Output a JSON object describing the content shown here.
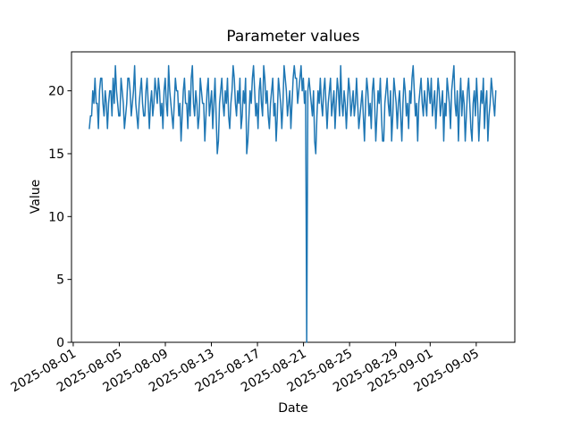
{
  "chart_data": {
    "type": "line",
    "title": "Parameter values",
    "xlabel": "Date",
    "ylabel": "Value",
    "line_color": "#1f77b4",
    "axis_color": "#000000",
    "grid": false,
    "legend": null,
    "x_epoch": "2025-08-01",
    "x_start_day": 1.4,
    "x_step_days": 0.098328,
    "xlim_days": [
      -0.15,
      38.35
    ],
    "ylim": [
      0,
      23.1
    ],
    "y_ticks": [
      0,
      5,
      10,
      15,
      20
    ],
    "x_ticks": [
      {
        "day": 0,
        "label": "2025-08-01"
      },
      {
        "day": 4,
        "label": "2025-08-05"
      },
      {
        "day": 8,
        "label": "2025-08-09"
      },
      {
        "day": 12,
        "label": "2025-08-13"
      },
      {
        "day": 16,
        "label": "2025-08-17"
      },
      {
        "day": 20,
        "label": "2025-08-21"
      },
      {
        "day": 24,
        "label": "2025-08-25"
      },
      {
        "day": 28,
        "label": "2025-08-29"
      },
      {
        "day": 31,
        "label": "2025-09-01"
      },
      {
        "day": 35,
        "label": "2025-09-05"
      }
    ],
    "values": [
      17,
      18,
      18,
      20,
      19,
      21,
      19,
      19,
      17,
      20,
      21,
      21,
      19,
      18,
      20,
      19,
      17,
      19,
      20,
      20,
      18,
      21,
      19,
      22,
      20,
      19,
      18,
      18,
      21,
      20,
      19,
      17,
      18,
      19,
      21,
      21,
      20,
      18,
      19,
      20,
      22,
      19,
      18,
      17,
      19,
      20,
      21,
      19,
      18,
      18,
      20,
      21,
      19,
      17,
      19,
      20,
      18,
      19,
      21,
      20,
      19,
      21,
      20,
      18,
      19,
      17,
      20,
      21,
      19,
      18,
      22,
      20,
      19,
      18,
      17,
      19,
      21,
      20,
      20,
      18,
      19,
      16,
      18,
      20,
      21,
      19,
      19,
      17,
      20,
      18,
      21,
      22,
      19,
      18,
      20,
      19,
      17,
      18,
      21,
      20,
      19,
      19,
      16,
      18,
      20,
      21,
      18,
      19,
      20,
      17,
      19,
      21,
      18,
      15,
      16,
      19,
      20,
      21,
      19,
      18,
      20,
      19,
      21,
      18,
      17,
      19,
      20,
      22,
      21,
      19,
      18,
      20,
      19,
      21,
      17,
      18,
      20,
      19,
      21,
      15,
      16,
      18,
      20,
      19,
      21,
      22,
      20,
      18,
      19,
      17,
      20,
      21,
      19,
      18,
      22,
      21,
      19,
      20,
      18,
      17,
      19,
      20,
      21,
      18,
      19,
      16,
      18,
      21,
      20,
      19,
      17,
      19,
      22,
      21,
      20,
      18,
      19,
      20,
      17,
      19,
      21,
      22,
      21,
      21,
      19,
      20,
      21,
      22,
      20,
      21,
      19,
      20,
      0,
      20,
      21,
      20,
      19,
      18,
      20,
      16,
      15,
      18,
      20,
      19,
      21,
      19,
      18,
      20,
      21,
      19,
      17,
      19,
      20,
      21,
      18,
      19,
      20,
      17,
      19,
      21,
      20,
      18,
      22,
      19,
      18,
      20,
      19,
      17,
      19,
      21,
      20,
      18,
      19,
      20,
      18,
      19,
      21,
      19,
      17,
      18,
      19,
      20,
      18,
      16,
      19,
      21,
      20,
      18,
      19,
      17,
      20,
      21,
      19,
      16,
      18,
      20,
      19,
      21,
      18,
      16,
      16,
      19,
      20,
      21,
      19,
      18,
      20,
      16,
      18,
      21,
      20,
      19,
      17,
      19,
      20,
      18,
      16,
      19,
      21,
      20,
      18,
      19,
      17,
      20,
      19,
      21,
      22,
      20,
      18,
      19,
      16,
      19,
      20,
      21,
      19,
      18,
      20,
      19,
      18,
      21,
      20,
      19,
      21,
      18,
      19,
      20,
      17,
      19,
      21,
      20,
      18,
      19,
      20,
      16,
      19,
      18,
      21,
      20,
      19,
      17,
      20,
      21,
      22,
      19,
      18,
      20,
      16,
      19,
      21,
      18,
      20,
      19,
      16,
      18,
      20,
      21,
      19,
      17,
      16,
      19,
      20,
      18,
      21,
      19,
      16,
      18,
      20,
      19,
      21,
      17,
      19,
      20,
      16,
      18,
      19,
      21,
      20,
      19,
      18,
      20
    ]
  }
}
